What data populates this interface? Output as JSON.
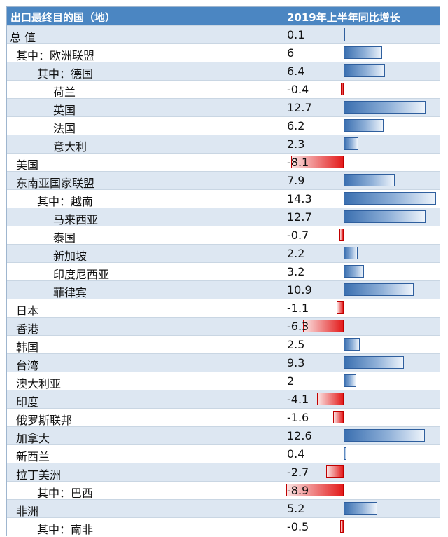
{
  "chart_data": {
    "type": "bar",
    "header": {
      "category": "出口最终目的国（地）",
      "value": "2019年上半年同比增长"
    },
    "rows": [
      {
        "name": "总 值",
        "value": 0.1,
        "label": "0.1",
        "level": 0
      },
      {
        "name": "其中：欧洲联盟",
        "value": 6,
        "label": "6",
        "level": 1
      },
      {
        "name": "其中：德国",
        "value": 6.4,
        "label": "6.4",
        "level": 2
      },
      {
        "name": "荷兰",
        "value": -0.4,
        "label": "-0.4",
        "level": 3
      },
      {
        "name": "英国",
        "value": 12.7,
        "label": "12.7",
        "level": 3
      },
      {
        "name": "法国",
        "value": 6.2,
        "label": "6.2",
        "level": 3
      },
      {
        "name": "意大利",
        "value": 2.3,
        "label": "2.3",
        "level": 3
      },
      {
        "name": "美国",
        "value": -8.1,
        "label": "-8.1",
        "level": 1
      },
      {
        "name": "东南亚国家联盟",
        "value": 7.9,
        "label": "7.9",
        "level": 1
      },
      {
        "name": "其中：越南",
        "value": 14.3,
        "label": "14.3",
        "level": 2
      },
      {
        "name": "马来西亚",
        "value": 12.7,
        "label": "12.7",
        "level": 3
      },
      {
        "name": "泰国",
        "value": -0.7,
        "label": "-0.7",
        "level": 3
      },
      {
        "name": "新加坡",
        "value": 2.2,
        "label": "2.2",
        "level": 3
      },
      {
        "name": "印度尼西亚",
        "value": 3.2,
        "label": "3.2",
        "level": 3
      },
      {
        "name": "菲律宾",
        "value": 10.9,
        "label": "10.9",
        "level": 3
      },
      {
        "name": "日本",
        "value": -1.1,
        "label": "-1.1",
        "level": 1
      },
      {
        "name": "香港",
        "value": -6.3,
        "label": "-6.3",
        "level": 1
      },
      {
        "name": "韩国",
        "value": 2.5,
        "label": "2.5",
        "level": 1
      },
      {
        "name": "台湾",
        "value": 9.3,
        "label": "9.3",
        "level": 1
      },
      {
        "name": "澳大利亚",
        "value": 2,
        "label": "2",
        "level": 1
      },
      {
        "name": "印度",
        "value": -4.1,
        "label": "-4.1",
        "level": 1
      },
      {
        "name": "俄罗斯联邦",
        "value": -1.6,
        "label": "-1.6",
        "level": 1
      },
      {
        "name": "加拿大",
        "value": 12.6,
        "label": "12.6",
        "level": 1
      },
      {
        "name": "新西兰",
        "value": 0.4,
        "label": "0.4",
        "level": 1
      },
      {
        "name": "拉丁美洲",
        "value": -2.7,
        "label": "-2.7",
        "level": 1
      },
      {
        "name": "其中：巴西",
        "value": -8.9,
        "label": "-8.9",
        "level": 2
      },
      {
        "name": "非洲",
        "value": 5.2,
        "label": "5.2",
        "level": 1
      },
      {
        "name": "其中：南非",
        "value": -0.5,
        "label": "-0.5",
        "level": 2
      }
    ],
    "value_range": [
      -9,
      14.5
    ],
    "colors": {
      "positive": "#4a7fbf",
      "negative": "#e31b1b",
      "header_bg": "#4b86c2"
    }
  }
}
